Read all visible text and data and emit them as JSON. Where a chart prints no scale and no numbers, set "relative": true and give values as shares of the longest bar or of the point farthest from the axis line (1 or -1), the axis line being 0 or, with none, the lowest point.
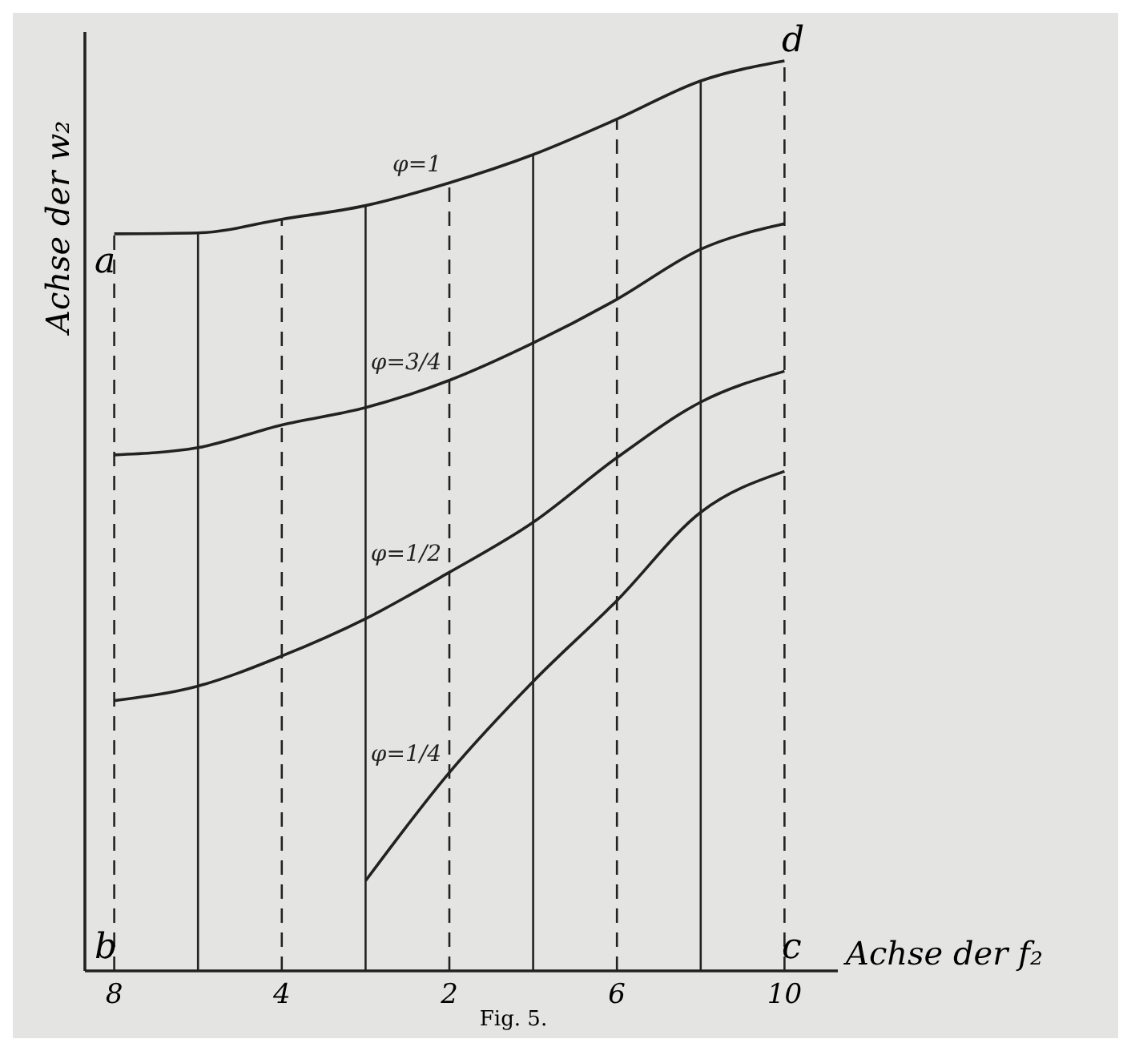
{
  "chart_data": {
    "type": "line",
    "relative": true,
    "xlabel": "Achse der f₂",
    "ylabel": "Achse der w₂",
    "categories": [
      "8",
      null,
      "4",
      null,
      "2",
      null,
      "6",
      null,
      "10"
    ],
    "grid": "x",
    "legend": false,
    "marker": "none",
    "line_style": "solid",
    "series": [
      {
        "name": "φ=1",
        "color": "#222222",
        "values": [
          0.81,
          0.811,
          0.826,
          0.841,
          0.866,
          0.897,
          0.936,
          0.978,
          1
        ]
      },
      {
        "name": "φ=3/4",
        "color": "#222222",
        "values": [
          0.567,
          0.575,
          0.6,
          0.619,
          0.649,
          0.69,
          0.738,
          0.793,
          0.821
        ]
      },
      {
        "name": "φ=1/2",
        "color": "#222222",
        "values": [
          0.297,
          0.313,
          0.346,
          0.387,
          0.438,
          0.493,
          0.564,
          0.625,
          0.659
        ]
      },
      {
        "name": "φ=1/4",
        "color": "#222222",
        "values": [
          null,
          null,
          null,
          0.099,
          0.218,
          0.318,
          0.407,
          0.504,
          0.549
        ]
      }
    ],
    "annotations": [
      "a",
      "b",
      "c",
      "d",
      "Fig. 5."
    ]
  }
}
